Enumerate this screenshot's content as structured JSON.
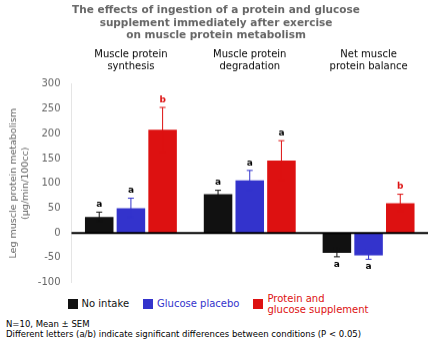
{
  "chart_data": {
    "type": "bar",
    "title": "The effects of ingestion of a protein and glucose\nsupplement immediately after exercise\non muscle protein metabolism",
    "ylabel": "Leg muscle protein metabolism\n(μg/min/100cc)",
    "categories": [
      "Muscle protein\nsynthesis",
      "Muscle protein\ndegradation",
      "Net muscle\nprotein balance"
    ],
    "series": [
      {
        "name": "No intake",
        "color": "#111111",
        "values": [
          32,
          78,
          -40
        ],
        "errors": [
          10,
          8,
          8
        ],
        "sig_labels": [
          "a",
          "a",
          "a"
        ]
      },
      {
        "name": "Glucose placebo",
        "color": "#3333cc",
        "values": [
          50,
          106,
          -45
        ],
        "errors": [
          20,
          20,
          8
        ],
        "sig_labels": [
          "a",
          "a",
          "a"
        ]
      },
      {
        "name": "Protein and\nglucose supplement",
        "color": "#dd1111",
        "values": [
          208,
          146,
          60
        ],
        "errors": [
          45,
          40,
          18
        ],
        "sig_labels": [
          "b",
          "a",
          "b"
        ]
      }
    ],
    "ylim": [
      -100,
      300
    ],
    "yticks": [
      -100,
      -50,
      0,
      50,
      100,
      150,
      200,
      250,
      300
    ],
    "grid": false,
    "legend": "bottom",
    "footnote": "N=10, Mean ± SEM\nDifferent letters (a/b) indicate significant differences between conditions (P < 0.05)"
  }
}
